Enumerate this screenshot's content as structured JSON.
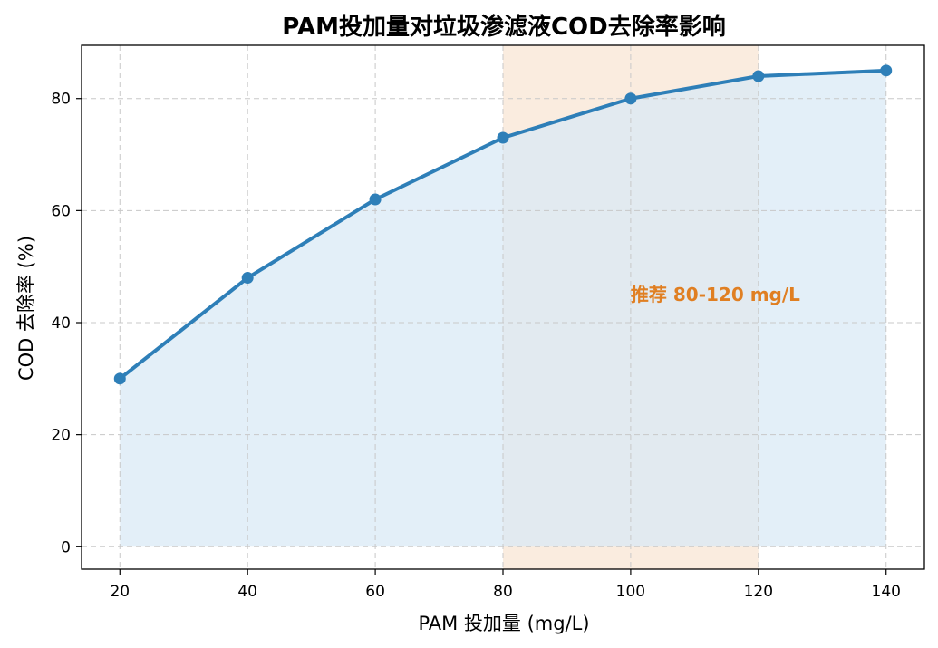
{
  "chart_data": {
    "type": "line",
    "title": "PAM投加量对垃圾渗滤液COD去除率影响",
    "xlabel": "PAM 投加量 (mg/L)",
    "ylabel": "COD 去除率 (%)",
    "x": [
      20,
      40,
      60,
      80,
      100,
      120,
      140
    ],
    "series": [
      {
        "values": [
          30,
          48,
          62,
          73,
          80,
          84,
          85
        ],
        "color": "#2e7fb8"
      }
    ],
    "area_fill_color": "#d9eaf5",
    "xlim": [
      14,
      146
    ],
    "ylim": [
      -4,
      89.5
    ],
    "xticks": [
      20,
      40,
      60,
      80,
      100,
      120,
      140
    ],
    "yticks": [
      0,
      20,
      40,
      60,
      80
    ],
    "grid": true,
    "highlight_band": {
      "x_range": [
        80,
        120
      ],
      "color": "#f5dcc5"
    },
    "annotation": {
      "text": "推荐 80-120 mg/L",
      "x": 100,
      "y": 45,
      "color": "#e07f22"
    }
  }
}
